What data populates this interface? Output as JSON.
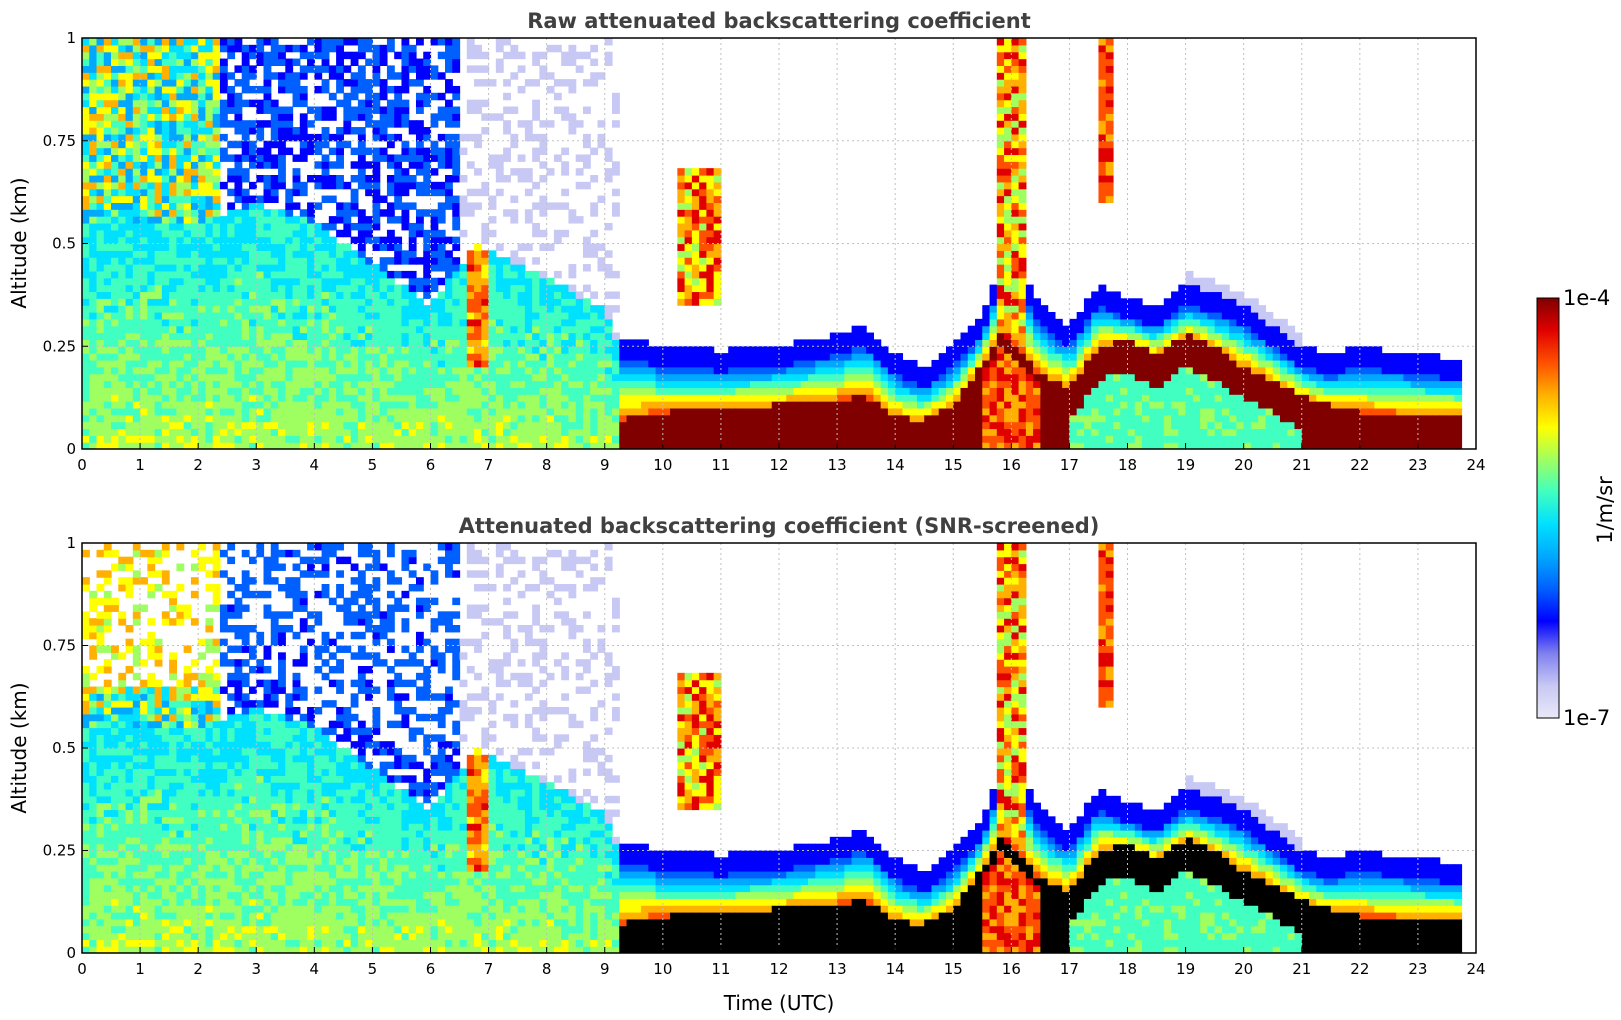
{
  "colors": {
    "colormap": [
      "#e8e8f8",
      "#c8c8f4",
      "#8080f0",
      "#0000ff",
      "#0060ff",
      "#00a8ff",
      "#00e0ff",
      "#40ffc0",
      "#a0ff60",
      "#ffff00",
      "#ffb000",
      "#ff5000",
      "#e00000",
      "#800000"
    ],
    "screened_saturation": "#000000",
    "grid": "#c0c0c0"
  },
  "chart_data": [
    {
      "type": "heatmap",
      "title": "Raw attenuated backscattering coefficient",
      "xlabel": "",
      "ylabel": "Altitude (km)",
      "xlim": [
        0,
        24
      ],
      "ylim": [
        0,
        1
      ],
      "xticks": [
        "0",
        "1",
        "2",
        "3",
        "4",
        "5",
        "6",
        "7",
        "8",
        "9",
        "10",
        "11",
        "12",
        "13",
        "14",
        "15",
        "16",
        "17",
        "18",
        "19",
        "20",
        "21",
        "22",
        "23",
        "24"
      ],
      "yticks": [
        "0",
        "0.25",
        "0.5",
        "0.75",
        "1"
      ],
      "grid": true,
      "data_gap_utc": [
        2.45,
        2.55
      ],
      "boundary_layer_top_km": {
        "x": [
          0,
          1,
          2,
          3,
          4,
          5,
          6,
          6.8,
          7.5,
          8.5,
          9,
          9.3,
          10,
          11,
          12,
          13,
          13.5,
          14,
          14.5,
          15,
          15.5,
          15.8,
          16,
          16.5,
          17,
          17.5,
          18,
          18.5,
          19,
          19.5,
          20,
          20.5,
          21,
          21.5,
          22,
          23,
          23.8
        ],
        "y": [
          0.55,
          0.55,
          0.55,
          0.6,
          0.55,
          0.45,
          0.35,
          0.5,
          0.45,
          0.38,
          0.34,
          0.22,
          0.2,
          0.19,
          0.2,
          0.23,
          0.25,
          0.18,
          0.15,
          0.2,
          0.28,
          0.4,
          0.42,
          0.3,
          0.25,
          0.35,
          0.32,
          0.3,
          0.35,
          0.33,
          0.3,
          0.25,
          0.2,
          0.18,
          0.2,
          0.18,
          0.17
        ]
      },
      "peak_signal_layer_km": {
        "x": [
          9.2,
          10,
          11,
          12,
          13,
          13.5,
          14,
          14.5,
          15,
          15.5,
          15.8,
          16,
          16.5,
          17,
          17.5,
          18,
          18.5,
          19,
          19.5,
          20,
          20.5,
          21,
          21.5,
          22,
          23,
          23.8
        ],
        "y": [
          0.04,
          0.06,
          0.07,
          0.08,
          0.09,
          0.1,
          0.05,
          0.04,
          0.08,
          0.18,
          0.25,
          0.23,
          0.15,
          0.12,
          0.22,
          0.24,
          0.2,
          0.25,
          0.22,
          0.17,
          0.14,
          0.1,
          0.08,
          0.06,
          0.06,
          0.06
        ]
      }
    },
    {
      "type": "heatmap",
      "title": "Attenuated backscattering coefficient (SNR-screened)",
      "xlabel": "Time (UTC)",
      "ylabel": "Altitude (km)",
      "xlim": [
        0,
        24
      ],
      "ylim": [
        0,
        1
      ],
      "xticks": [
        "0",
        "1",
        "2",
        "3",
        "4",
        "5",
        "6",
        "7",
        "8",
        "9",
        "10",
        "11",
        "12",
        "13",
        "14",
        "15",
        "16",
        "17",
        "18",
        "19",
        "20",
        "21",
        "22",
        "23",
        "24"
      ],
      "yticks": [
        "0",
        "0.25",
        "0.5",
        "0.75",
        "1"
      ],
      "grid": true,
      "data_gap_utc": [
        2.45,
        2.55
      ]
    }
  ],
  "colorbar": {
    "label": "1/m/sr",
    "max_label": "1e-4",
    "min_label": "1e-7",
    "scale": "log",
    "range": [
      1e-07,
      0.0001
    ]
  }
}
